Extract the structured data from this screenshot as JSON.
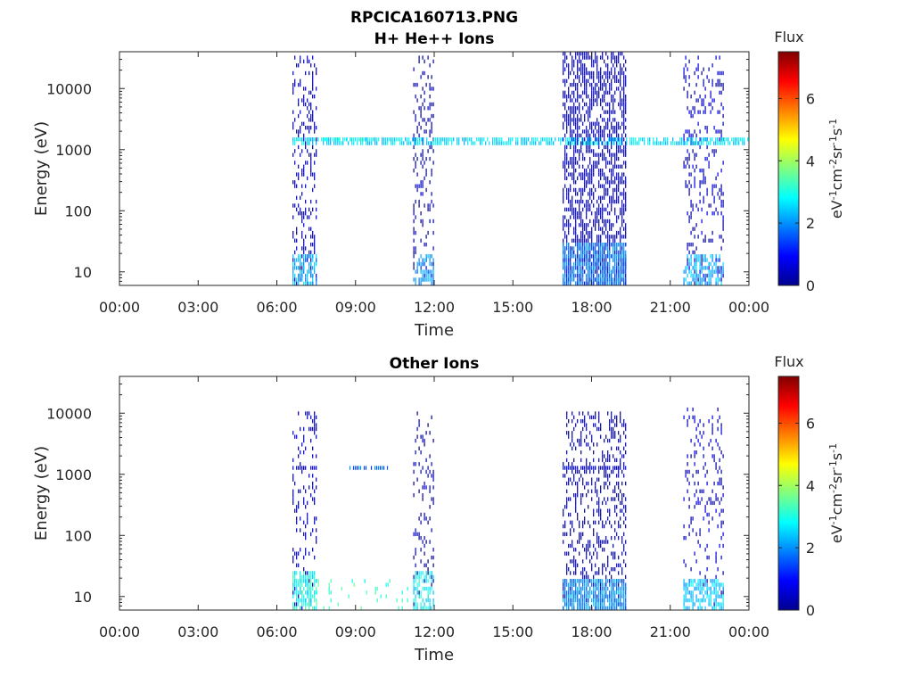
{
  "figure_title": "RPCICA160713.PNG",
  "chart_data": [
    {
      "type": "heatmap",
      "title": "H+ He++ Ions",
      "xlabel": "Time",
      "ylabel": "Energy (eV)",
      "x_ticks": [
        "00:00",
        "03:00",
        "06:00",
        "09:00",
        "12:00",
        "15:00",
        "18:00",
        "21:00",
        "00:00"
      ],
      "xlim_hours": [
        0,
        24
      ],
      "y_scale": "log",
      "ylim": [
        6,
        40000
      ],
      "y_ticks": [
        {
          "value": 10,
          "label": "10"
        },
        {
          "value": 100,
          "label": "100"
        },
        {
          "value": 1000,
          "label": "1000"
        },
        {
          "value": 10000,
          "label": "10000"
        }
      ],
      "colorbar": {
        "title": "Flux",
        "label": "eV-1cm-2sr-1s-1",
        "range": [
          0,
          7.5
        ],
        "ticks": [
          {
            "value": 0,
            "label": "0"
          },
          {
            "value": 2,
            "label": "2"
          },
          {
            "value": 4,
            "label": "4"
          },
          {
            "value": 6,
            "label": "6"
          }
        ],
        "colormap": "jet"
      },
      "observations": [
        {
          "start": 6.6,
          "end": 7.5,
          "emin": 6,
          "emax": 35000,
          "level": 0.4,
          "density": 0.28
        },
        {
          "start": 6.6,
          "end": 7.5,
          "emin": 6,
          "emax": 20,
          "level": 2.2,
          "density": 0.6
        },
        {
          "start": 11.2,
          "end": 12.0,
          "emin": 6,
          "emax": 35000,
          "level": 0.4,
          "density": 0.22
        },
        {
          "start": 11.2,
          "end": 12.0,
          "emin": 6,
          "emax": 20,
          "level": 2.0,
          "density": 0.55
        },
        {
          "start": 16.9,
          "end": 19.3,
          "emin": 6,
          "emax": 40000,
          "level": 0.5,
          "density": 0.55
        },
        {
          "start": 16.9,
          "end": 19.3,
          "emin": 6,
          "emax": 30,
          "level": 1.8,
          "density": 0.8
        },
        {
          "start": 21.5,
          "end": 23.0,
          "emin": 6,
          "emax": 35000,
          "level": 0.4,
          "density": 0.22
        },
        {
          "start": 21.5,
          "end": 23.0,
          "emin": 6,
          "emax": 20,
          "level": 2.2,
          "density": 0.55
        },
        {
          "start": 6.6,
          "end": 24.0,
          "emin": 1100,
          "emax": 1600,
          "level": 2.6,
          "density": 0.7
        },
        {
          "start": 7.5,
          "end": 9.5,
          "emin": 1300,
          "emax": 1600,
          "level": 3.0,
          "density": 0.6
        }
      ]
    },
    {
      "type": "heatmap",
      "title": "Other Ions",
      "xlabel": "Time",
      "ylabel": "Energy (eV)",
      "x_ticks": [
        "00:00",
        "03:00",
        "06:00",
        "09:00",
        "12:00",
        "15:00",
        "18:00",
        "21:00",
        "00:00"
      ],
      "xlim_hours": [
        0,
        24
      ],
      "y_scale": "log",
      "ylim": [
        6,
        40000
      ],
      "y_ticks": [
        {
          "value": 10,
          "label": "10"
        },
        {
          "value": 100,
          "label": "100"
        },
        {
          "value": 1000,
          "label": "1000"
        },
        {
          "value": 10000,
          "label": "10000"
        }
      ],
      "colorbar": {
        "title": "Flux",
        "label": "eV-1cm-2sr-1s-1",
        "range": [
          0,
          7.5
        ],
        "ticks": [
          {
            "value": 0,
            "label": "0"
          },
          {
            "value": 2,
            "label": "2"
          },
          {
            "value": 4,
            "label": "4"
          },
          {
            "value": 6,
            "label": "6"
          }
        ],
        "colormap": "jet"
      },
      "observations": [
        {
          "start": 6.6,
          "end": 7.5,
          "emin": 6,
          "emax": 10000,
          "level": 0.4,
          "density": 0.2
        },
        {
          "start": 6.6,
          "end": 7.5,
          "emin": 1100,
          "emax": 1400,
          "level": 0.6,
          "density": 0.6
        },
        {
          "start": 6.6,
          "end": 7.5,
          "emin": 6,
          "emax": 25,
          "level": 3.0,
          "density": 0.7
        },
        {
          "start": 8.7,
          "end": 10.2,
          "emin": 1150,
          "emax": 1400,
          "level": 1.6,
          "density": 0.6
        },
        {
          "start": 7.5,
          "end": 11.0,
          "emin": 6,
          "emax": 20,
          "level": 3.2,
          "density": 0.08
        },
        {
          "start": 11.2,
          "end": 12.0,
          "emin": 6,
          "emax": 10000,
          "level": 0.4,
          "density": 0.18
        },
        {
          "start": 11.2,
          "end": 12.0,
          "emin": 6,
          "emax": 25,
          "level": 2.8,
          "density": 0.6
        },
        {
          "start": 16.9,
          "end": 19.3,
          "emin": 6,
          "emax": 10000,
          "level": 0.4,
          "density": 0.3
        },
        {
          "start": 16.9,
          "end": 19.3,
          "emin": 1100,
          "emax": 1400,
          "level": 0.7,
          "density": 0.8
        },
        {
          "start": 16.9,
          "end": 19.3,
          "emin": 6,
          "emax": 20,
          "level": 2.0,
          "density": 0.8
        },
        {
          "start": 21.5,
          "end": 23.0,
          "emin": 6,
          "emax": 12000,
          "level": 0.4,
          "density": 0.15
        },
        {
          "start": 21.5,
          "end": 23.0,
          "emin": 6,
          "emax": 20,
          "level": 2.4,
          "density": 0.6
        }
      ]
    }
  ]
}
